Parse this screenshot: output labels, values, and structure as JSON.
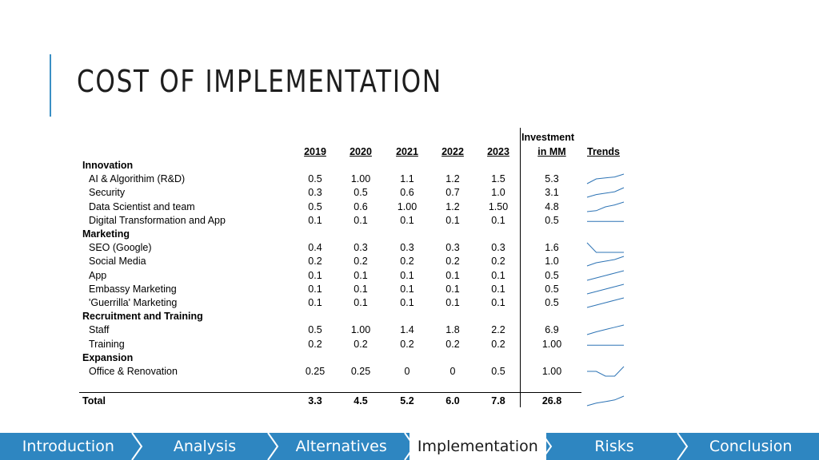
{
  "title": "COST OF IMPLEMENTATION",
  "colors": {
    "accent": "#3a8fc4",
    "nav_bg": "#2e86c1",
    "sparkline": "#2e74b5"
  },
  "table": {
    "header_investment_1": "Investment",
    "header_investment_2": "in MM",
    "header_trends": "Trends",
    "years": [
      "2019",
      "2020",
      "2021",
      "2022",
      "2023"
    ],
    "groups": [
      {
        "name": "Innovation",
        "rows": [
          {
            "label": "AI & Algorithim (R&D)",
            "values": [
              "0.5",
              "1.00",
              "1.1",
              "1.2",
              "1.5"
            ],
            "investment": "5.3"
          },
          {
            "label": "Security",
            "values": [
              "0.3",
              "0.5",
              "0.6",
              "0.7",
              "1.0"
            ],
            "investment": "3.1"
          },
          {
            "label": "Data Scientist and team",
            "values": [
              "0.5",
              "0.6",
              "1.00",
              "1.2",
              "1.50"
            ],
            "investment": "4.8"
          },
          {
            "label": "Digital Transformation and App",
            "values": [
              "0.1",
              "0.1",
              "0.1",
              "0.1",
              "0.1"
            ],
            "investment": "0.5"
          }
        ]
      },
      {
        "name": "Marketing",
        "rows": [
          {
            "label": "SEO (Google)",
            "values": [
              "0.4",
              "0.3",
              "0.3",
              "0.3",
              "0.3"
            ],
            "investment": "1.6"
          },
          {
            "label": "Social Media",
            "values": [
              "0.2",
              "0.2",
              "0.2",
              "0.2",
              "0.2"
            ],
            "investment": "1.0"
          },
          {
            "label": "App",
            "values": [
              "0.1",
              "0.1",
              "0.1",
              "0.1",
              "0.1"
            ],
            "investment": "0.5"
          },
          {
            "label": "Embassy Marketing",
            "values": [
              "0.1",
              "0.1",
              "0.1",
              "0.1",
              "0.1"
            ],
            "investment": "0.5"
          },
          {
            "label": "'Guerrilla' Marketing",
            "values": [
              "0.1",
              "0.1",
              "0.1",
              "0.1",
              "0.1"
            ],
            "investment": "0.5"
          }
        ]
      },
      {
        "name": "Recruitment and Training",
        "rows": [
          {
            "label": "Staff",
            "values": [
              "0.5",
              "1.00",
              "1.4",
              "1.8",
              "2.2"
            ],
            "investment": "6.9"
          },
          {
            "label": "Training",
            "values": [
              "0.2",
              "0.2",
              "0.2",
              "0.2",
              "0.2"
            ],
            "investment": "1.00"
          }
        ]
      },
      {
        "name": "Expansion",
        "rows": [
          {
            "label": "Office & Renovation",
            "values": [
              "0.25",
              "0.25",
              "0",
              "0",
              "0.5"
            ],
            "investment": "1.00"
          }
        ]
      }
    ],
    "total": {
      "label": "Total",
      "values": [
        "3.3",
        "4.5",
        "5.2",
        "6.0",
        "7.8"
      ],
      "investment": "26.8"
    },
    "trend_series": [
      [
        0.5,
        1.0,
        1.1,
        1.2,
        1.5
      ],
      [
        0.3,
        0.5,
        0.6,
        0.7,
        1.0
      ],
      [
        0.5,
        0.6,
        1.0,
        1.2,
        1.5
      ],
      [
        0.1,
        0.1,
        0.1,
        0.1,
        0.1
      ],
      [
        0.4,
        0.3,
        0.3,
        0.3,
        0.3
      ],
      [
        0.17,
        0.19,
        0.2,
        0.21,
        0.23
      ],
      [
        0.08,
        0.09,
        0.1,
        0.11,
        0.12
      ],
      [
        0.08,
        0.09,
        0.1,
        0.11,
        0.12
      ],
      [
        0.08,
        0.09,
        0.1,
        0.11,
        0.12
      ],
      [
        0.5,
        1.0,
        1.4,
        1.8,
        2.2
      ],
      [
        0.2,
        0.2,
        0.2,
        0.2,
        0.2
      ],
      [
        0.25,
        0.25,
        0,
        0,
        0.5
      ],
      [
        3.3,
        4.5,
        5.2,
        6.0,
        7.8
      ]
    ]
  },
  "nav": {
    "items": [
      "Introduction",
      "Analysis",
      "Alternatives",
      "Implementation",
      "Risks",
      "Conclusion"
    ],
    "active": "Implementation"
  }
}
